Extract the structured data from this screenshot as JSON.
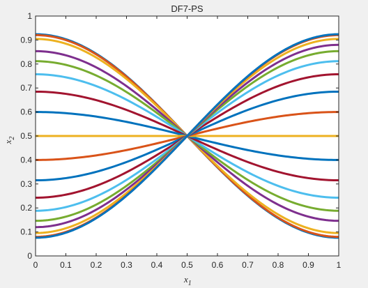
{
  "chart_data": {
    "type": "line",
    "title": "DF7-PS",
    "xlabel_main": "x",
    "xlabel_sub": "1",
    "ylabel_main": "x",
    "ylabel_sub": "2",
    "xlim": [
      0,
      1
    ],
    "ylim": [
      0,
      1
    ],
    "xticks": [
      "0",
      "0.1",
      "0.2",
      "0.3",
      "0.4",
      "0.5",
      "0.6",
      "0.7",
      "0.8",
      "0.9",
      "1"
    ],
    "yticks": [
      "0",
      "0.1",
      "0.2",
      "0.3",
      "0.4",
      "0.5",
      "0.6",
      "0.7",
      "0.8",
      "0.9",
      "1"
    ],
    "grid": false,
    "curve_form": "x2 = 0.5 + 0.5 * sin(a) * cos(pi * x1)",
    "x": [
      0,
      0.05,
      0.1,
      0.15,
      0.2,
      0.25,
      0.3,
      0.35,
      0.4,
      0.45,
      0.5,
      0.55,
      0.6,
      0.65,
      0.7,
      0.75,
      0.8,
      0.85,
      0.9,
      0.95,
      1
    ],
    "series": [
      {
        "color": "#0072BD",
        "amplitude": 0.4241,
        "start": 0.924,
        "end": 0.076
      },
      {
        "color": "#D95319",
        "amplitude": 0.4204,
        "start": 0.92,
        "end": 0.08
      },
      {
        "color": "#EDB120",
        "amplitude": 0.4045,
        "start": 0.905,
        "end": 0.095
      },
      {
        "color": "#7E2F8E",
        "amplitude": 0.3536,
        "start": 0.854,
        "end": 0.146
      },
      {
        "color": "#77AC30",
        "amplitude": 0.3117,
        "start": 0.812,
        "end": 0.188
      },
      {
        "color": "#4DBEEE",
        "amplitude": 0.2572,
        "start": 0.757,
        "end": 0.243
      },
      {
        "color": "#A2142F",
        "amplitude": 0.1847,
        "start": 0.685,
        "end": 0.315
      },
      {
        "color": "#0072BD",
        "amplitude": 0.1,
        "start": 0.6,
        "end": 0.4
      },
      {
        "color": "#EDB120",
        "amplitude": 0.0,
        "start": 0.5,
        "end": 0.5
      },
      {
        "color": "#D95319",
        "amplitude": -0.1,
        "start": 0.4,
        "end": 0.6
      },
      {
        "color": "#0072BD",
        "amplitude": -0.1847,
        "start": 0.315,
        "end": 0.685
      },
      {
        "color": "#A2142F",
        "amplitude": -0.2572,
        "start": 0.243,
        "end": 0.757
      },
      {
        "color": "#4DBEEE",
        "amplitude": -0.3117,
        "start": 0.188,
        "end": 0.812
      },
      {
        "color": "#77AC30",
        "amplitude": -0.3536,
        "start": 0.146,
        "end": 0.854
      },
      {
        "color": "#7E2F8E",
        "amplitude": -0.38,
        "start": 0.12,
        "end": 0.88
      },
      {
        "color": "#EDB120",
        "amplitude": -0.4045,
        "start": 0.095,
        "end": 0.905
      },
      {
        "color": "#D95319",
        "amplitude": -0.4204,
        "start": 0.08,
        "end": 0.92
      },
      {
        "color": "#0072BD",
        "amplitude": -0.4241,
        "start": 0.076,
        "end": 0.924
      }
    ]
  }
}
